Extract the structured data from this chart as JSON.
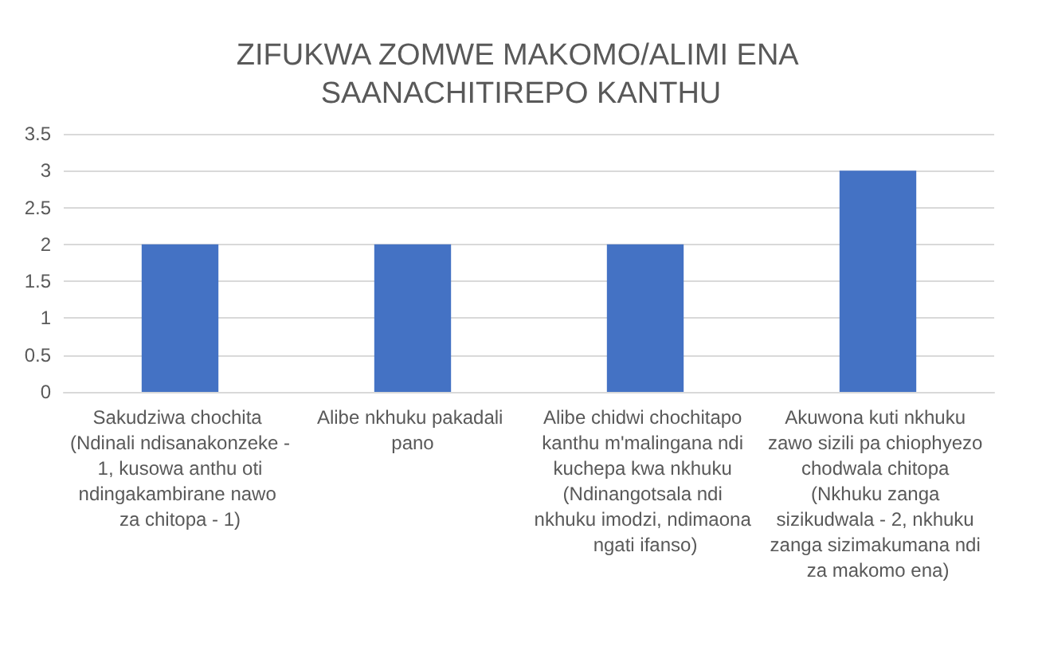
{
  "chart_data": {
    "type": "bar",
    "title": "ZIFUKWA ZOMWE MAKOMO/ALIMI ENA SAANACHITIREPO KANTHU",
    "categories": [
      "Sakudziwa chochita (Ndinali ndisanakonzeke - 1, kusowa anthu oti ndingakambirane nawo za chitopa - 1)",
      "Alibe nkhuku pakadali pano",
      "Alibe chidwi chochitapo kanthu m'malingana ndi kuchepa kwa nkhuku (Ndinangotsala ndi nkhuku imodzi, ndimaona ngati ifanso)",
      "Akuwona kuti nkhuku zawo sizili pa chiophyezo chodwala chitopa (Nkhuku zanga sizikudwala - 2, nkhuku zanga sizimakumana ndi za makomo ena)"
    ],
    "values": [
      2,
      2,
      2,
      3
    ],
    "color": "#4472c4",
    "ylim": [
      0,
      3.5
    ],
    "yticks": [
      0,
      0.5,
      1,
      1.5,
      2,
      2.5,
      3,
      3.5
    ],
    "grid": "y"
  }
}
